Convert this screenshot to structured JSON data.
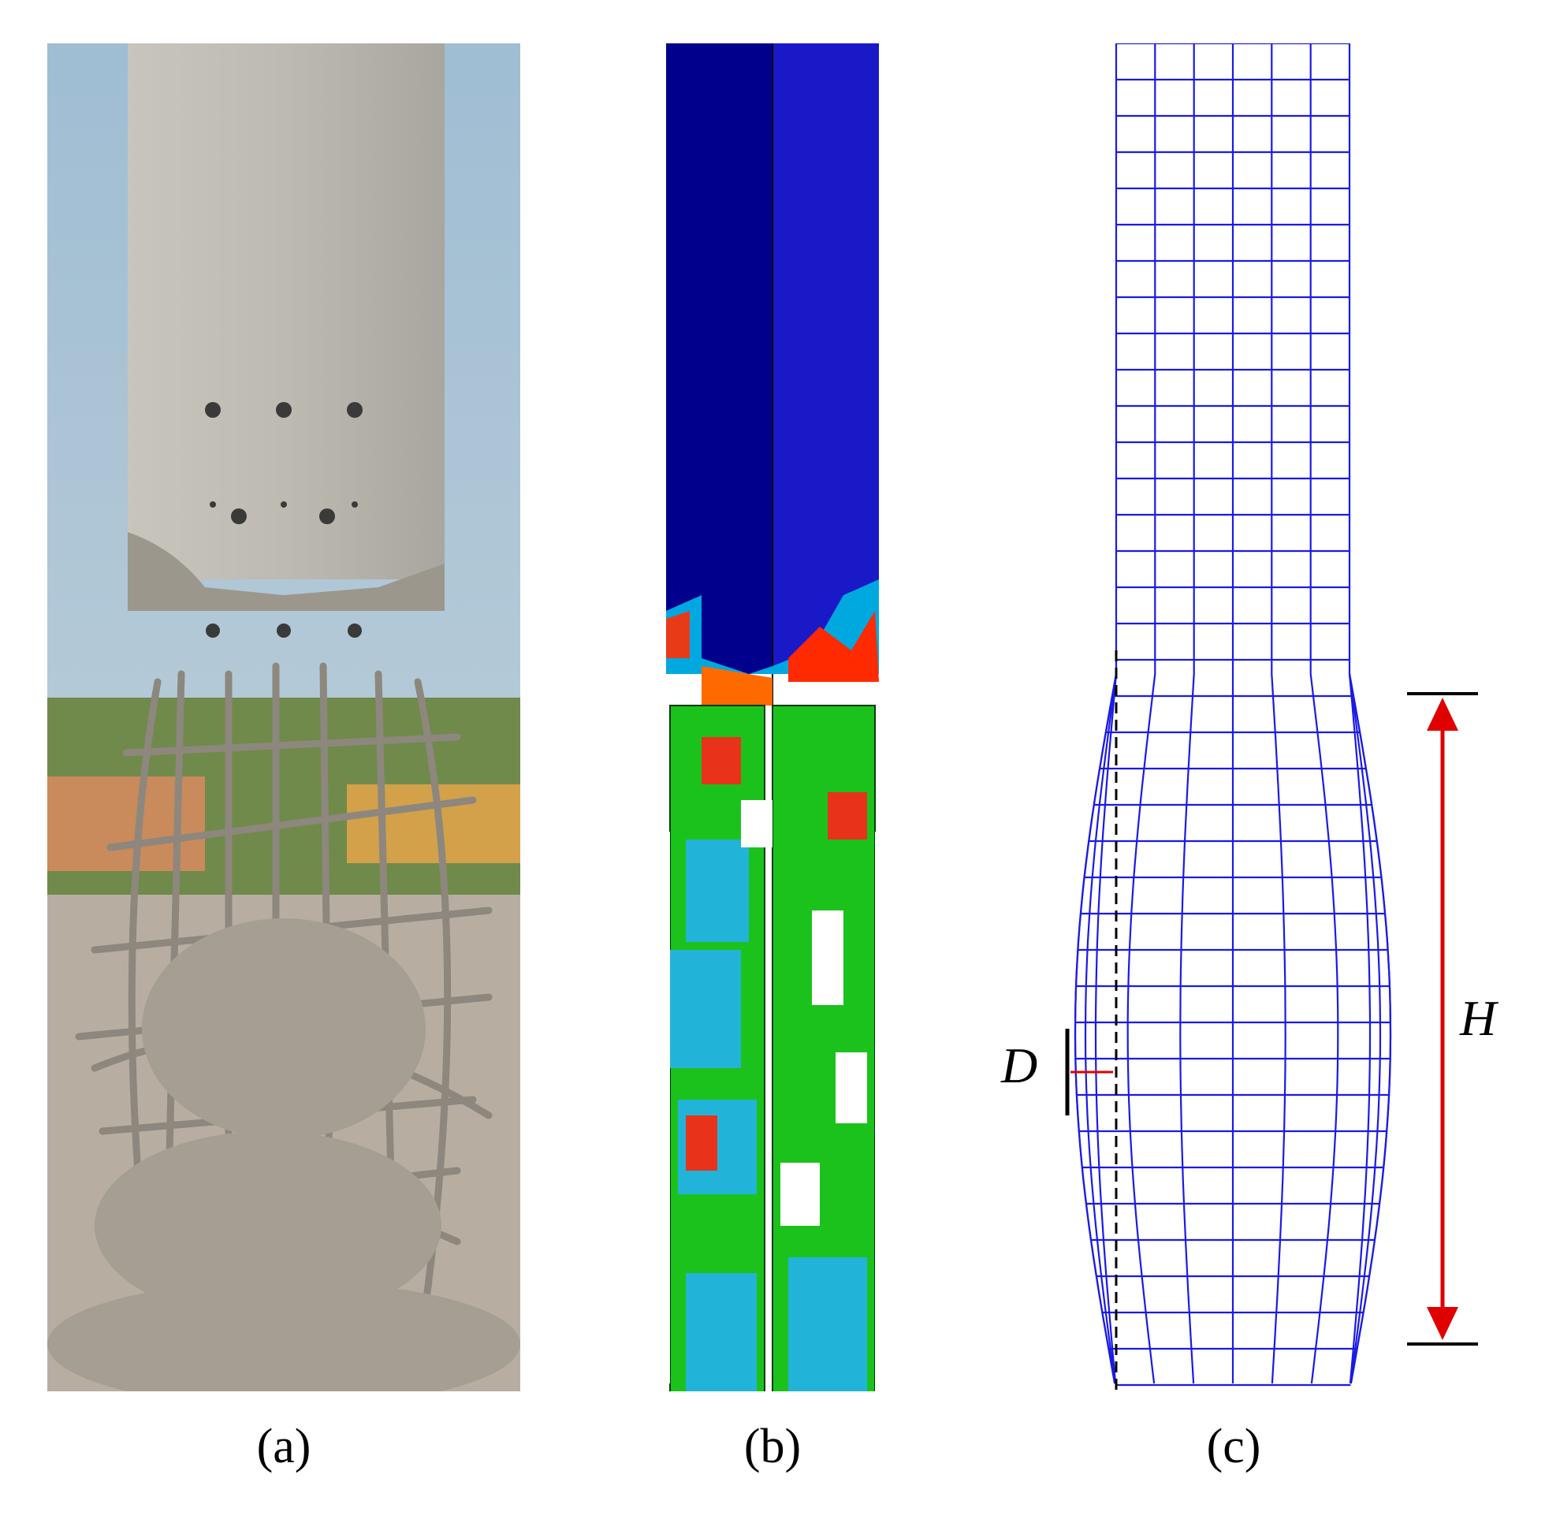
{
  "captions": {
    "a": "(a)",
    "b": "(b)",
    "c": "(c)"
  },
  "annotations": {
    "height_label": "H",
    "bulge_label": "D"
  },
  "colors": {
    "mesh_blue": "#1a1ae6",
    "dimension_red": "#e00000",
    "fem_dark_blue": "#00008c",
    "fem_blue": "#1919c8",
    "sky": "#a9c3d6",
    "concrete": "#bdbab3"
  }
}
